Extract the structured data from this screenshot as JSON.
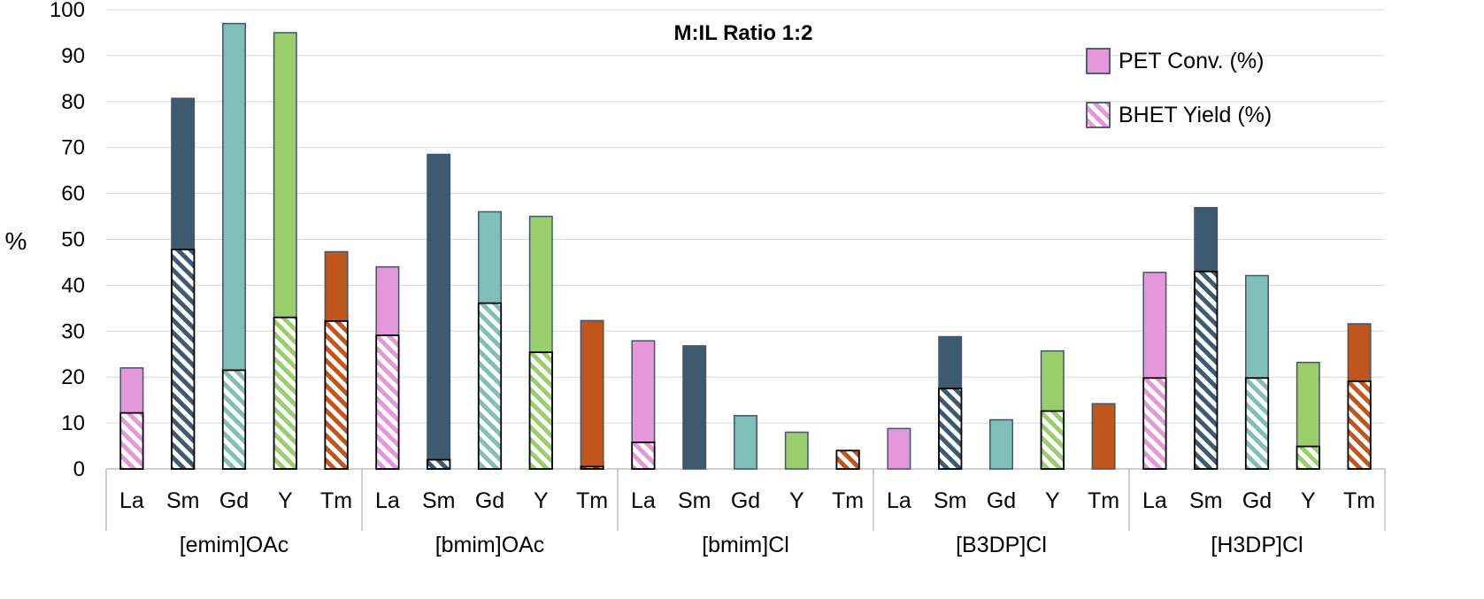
{
  "chart_data": {
    "type": "bar",
    "title": "M:IL Ratio 1:2",
    "ylabel": "%",
    "xlabel": "",
    "ylim": [
      0,
      100
    ],
    "yticks": [
      0,
      10,
      20,
      30,
      40,
      50,
      60,
      70,
      80,
      90,
      100
    ],
    "grid": true,
    "legend_position": "top-right",
    "metals": [
      "La",
      "Sm",
      "Gd",
      "Y",
      "Tm"
    ],
    "metal_colors": {
      "La": "#E597DB",
      "Sm": "#3C5A70",
      "Gd": "#7FBFB8",
      "Y": "#9ACD6C",
      "Tm": "#C0561B"
    },
    "groups": [
      {
        "name": "[emim]OAc",
        "conversion": [
          22,
          80.7,
          97,
          95,
          47.3
        ],
        "yield": [
          12.2,
          47.8,
          21.5,
          33,
          32.2
        ]
      },
      {
        "name": "[bmim]OAc",
        "conversion": [
          44,
          68.5,
          56,
          55,
          32.3
        ],
        "yield": [
          29.1,
          2,
          36.1,
          25.4,
          0.5
        ]
      },
      {
        "name": "[bmim]Cl",
        "conversion": [
          27.9,
          26.8,
          11.6,
          8,
          4
        ],
        "yield": [
          5.8,
          0,
          0,
          0,
          4
        ]
      },
      {
        "name": "[B3DP]Cl",
        "conversion": [
          8.8,
          28.8,
          10.7,
          25.7,
          14.2
        ],
        "yield": [
          0,
          17.5,
          0,
          12.6,
          0
        ]
      },
      {
        "name": "[H3DP]Cl",
        "conversion": [
          42.8,
          56.9,
          42.1,
          23.2,
          31.6
        ],
        "yield": [
          19.8,
          43,
          19.8,
          4.9,
          19.1
        ]
      }
    ],
    "legend": [
      {
        "label": "PET Conv. (%)",
        "style": "solid",
        "color": "#E597DB"
      },
      {
        "label": "BHET Yield (%)",
        "style": "hatched",
        "color": "#E597DB"
      }
    ]
  }
}
